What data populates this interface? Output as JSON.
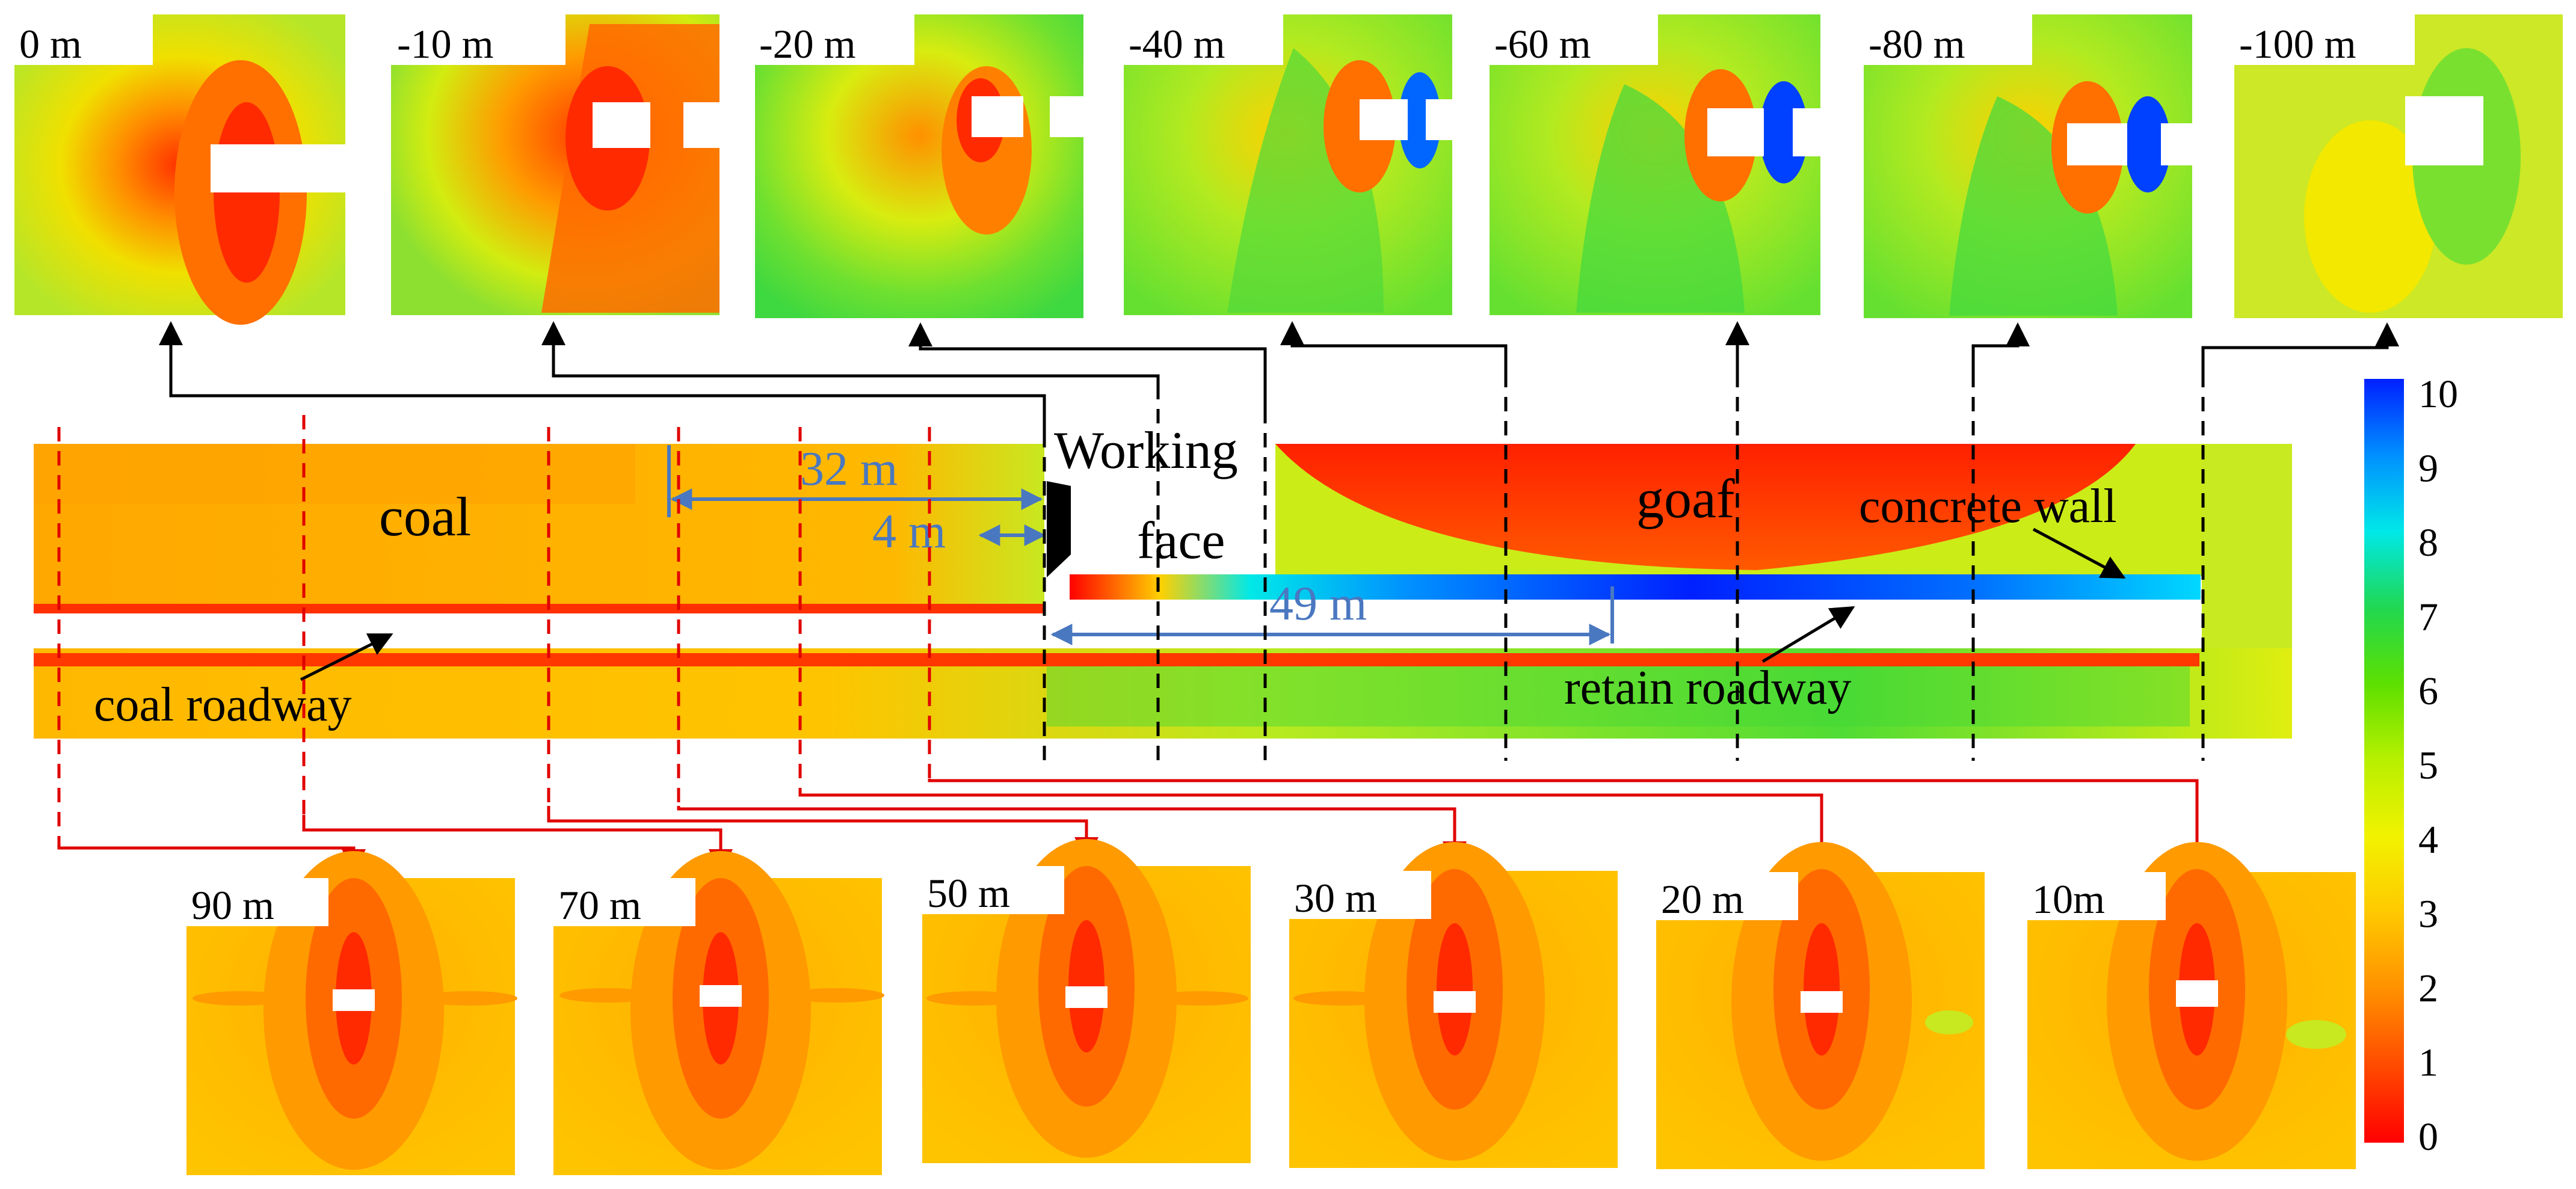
{
  "top_panels": [
    {
      "label": "0 m"
    },
    {
      "label": "-10 m"
    },
    {
      "label": "-20 m"
    },
    {
      "label": "-40 m"
    },
    {
      "label": "-60 m"
    },
    {
      "label": "-80 m"
    },
    {
      "label": "-100 m"
    }
  ],
  "bottom_panels": [
    {
      "label": "90 m"
    },
    {
      "label": "70 m"
    },
    {
      "label": "50 m"
    },
    {
      "label": "30 m"
    },
    {
      "label": "20 m"
    },
    {
      "label": "10m"
    }
  ],
  "section": {
    "coal_label": "coal",
    "goaf_label": "goaf",
    "working_face_line1": "Working",
    "working_face_line2": "face",
    "concrete_wall_label": "concrete wall",
    "retain_roadway_label": "retain roadway",
    "coal_roadway_label": "coal roadway",
    "dim_32": "32 m",
    "dim_4": "4 m",
    "dim_49": "49 m"
  },
  "colorbar": {
    "ticks": [
      "0",
      "1",
      "2",
      "3",
      "4",
      "5",
      "6",
      "7",
      "8",
      "9",
      "10"
    ],
    "colors": [
      "#ff0000",
      "#ff4a00",
      "#ff9000",
      "#ffc800",
      "#f2f200",
      "#b8f000",
      "#5ee000",
      "#20d850",
      "#00e8e8",
      "#0090ff",
      "#0020ff"
    ]
  },
  "colors": {
    "top_arrows": "#000000",
    "bottom_arrows": "#e00000",
    "dimension": "#4a78c0"
  }
}
